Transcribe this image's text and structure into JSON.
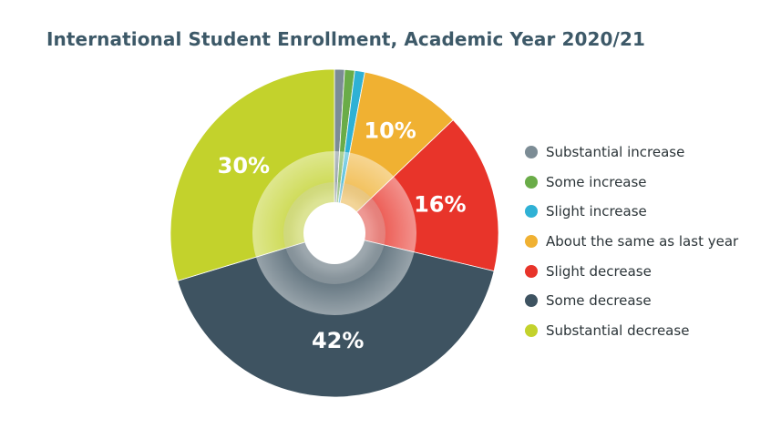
{
  "chart_data": {
    "type": "pie",
    "title": "International Student Enrollment, Academic Year 2020/21",
    "categories": [
      "Substantial increase",
      "Some increase",
      "Slight increase",
      "About the same as last year",
      "Slight decrease",
      "Some decrease",
      "Substantial decrease"
    ],
    "values": [
      1,
      1,
      1,
      10,
      16,
      42,
      30
    ],
    "data_labels": [
      "",
      "",
      "",
      "10%",
      "16%",
      "42%",
      "30%"
    ],
    "colors": [
      "#7c8c95",
      "#6aac48",
      "#2fb1d5",
      "#f0b132",
      "#e8342a",
      "#3e5361",
      "#c3d22c"
    ],
    "start_angle_deg": 0,
    "direction": "clockwise",
    "legend_position": "right",
    "donut": true
  }
}
